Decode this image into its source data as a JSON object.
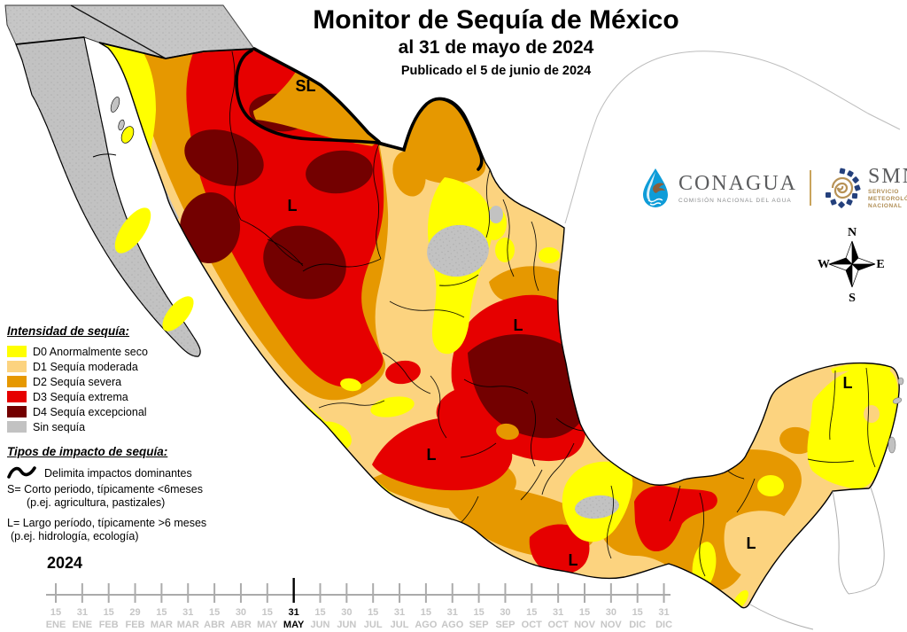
{
  "title": {
    "main": "Monitor de Sequía de México",
    "date_line": "al 31 de mayo de 2024",
    "published_line": "Publicado el 5 de junio de 2024"
  },
  "logos": {
    "conagua": {
      "name": "CONAGUA",
      "subtitle": "COMISIÓN NACIONAL DEL AGUA"
    },
    "smn": {
      "name": "SMN",
      "subtitle_lines": [
        "SERVICIO",
        "METEOROLÓGICO",
        "NACIONAL"
      ]
    }
  },
  "compass": {
    "north": "N",
    "south": "S",
    "east": "E",
    "west": "W"
  },
  "legend": {
    "intensity_title": "Intensidad de sequía:",
    "items": [
      {
        "code": "D0",
        "label": "D0 Anormalmente seco",
        "color": "#FFFF00"
      },
      {
        "code": "D1",
        "label": "D1 Sequía moderada",
        "color": "#FCD37F"
      },
      {
        "code": "D2",
        "label": "D2 Sequía severa",
        "color": "#E69800"
      },
      {
        "code": "D3",
        "label": "D3 Sequía extrema",
        "color": "#E60000"
      },
      {
        "code": "D4",
        "label": "D4 Sequía excepcional",
        "color": "#730000"
      },
      {
        "code": "SIN",
        "label": "Sin sequía",
        "color": "#C2C2C2"
      }
    ],
    "impact_title": "Tipos de impacto de sequía:",
    "impact_symbol_label": "Delimita impactos dominantes",
    "impact_lines": [
      "S= Corto periodo, típicamente <6meses",
      "(p.ej. agricultura, pastizales)",
      "L= Largo período, típicamente >6 meses",
      "(p.ej. hidrología, ecología)"
    ]
  },
  "timeline": {
    "year": "2024",
    "highlight_index": 9,
    "ticks": [
      {
        "day": "15",
        "month": "ENE"
      },
      {
        "day": "31",
        "month": "ENE"
      },
      {
        "day": "15",
        "month": "FEB"
      },
      {
        "day": "29",
        "month": "FEB"
      },
      {
        "day": "15",
        "month": "MAR"
      },
      {
        "day": "31",
        "month": "MAR"
      },
      {
        "day": "15",
        "month": "ABR"
      },
      {
        "day": "30",
        "month": "ABR"
      },
      {
        "day": "15",
        "month": "MAY"
      },
      {
        "day": "31",
        "month": "MAY"
      },
      {
        "day": "15",
        "month": "JUN"
      },
      {
        "day": "30",
        "month": "JUN"
      },
      {
        "day": "15",
        "month": "JUL"
      },
      {
        "day": "31",
        "month": "JUL"
      },
      {
        "day": "15",
        "month": "AGO"
      },
      {
        "day": "31",
        "month": "AGO"
      },
      {
        "day": "15",
        "month": "SEP"
      },
      {
        "day": "30",
        "month": "SEP"
      },
      {
        "day": "15",
        "month": "OCT"
      },
      {
        "day": "31",
        "month": "OCT"
      },
      {
        "day": "15",
        "month": "NOV"
      },
      {
        "day": "30",
        "month": "NOV"
      },
      {
        "day": "15",
        "month": "DIC"
      },
      {
        "day": "31",
        "month": "DIC"
      }
    ]
  },
  "map": {
    "labels": [
      {
        "text": "SL",
        "meaning": "short-and-long-term impact"
      },
      {
        "text": "L",
        "meaning": "long-term impact Chihuahua"
      },
      {
        "text": "L",
        "meaning": "long-term impact Huasteca"
      },
      {
        "text": "L",
        "meaning": "long-term impact Jalisco"
      },
      {
        "text": "L",
        "meaning": "long-term impact Guerrero"
      },
      {
        "text": "L",
        "meaning": "long-term impact Chiapas"
      },
      {
        "text": "L",
        "meaning": "long-term impact Yucatán"
      }
    ],
    "colors": {
      "d0": "#FFFF00",
      "d1": "#FCD37F",
      "d2": "#E69800",
      "d3": "#E60000",
      "d4": "#730000",
      "none": "#C2C2C2",
      "foreign": "#C6C6C6",
      "outline": "#000000",
      "timeline_gray": "#C6C6C6",
      "timeline_line": "#ABABAB"
    }
  }
}
